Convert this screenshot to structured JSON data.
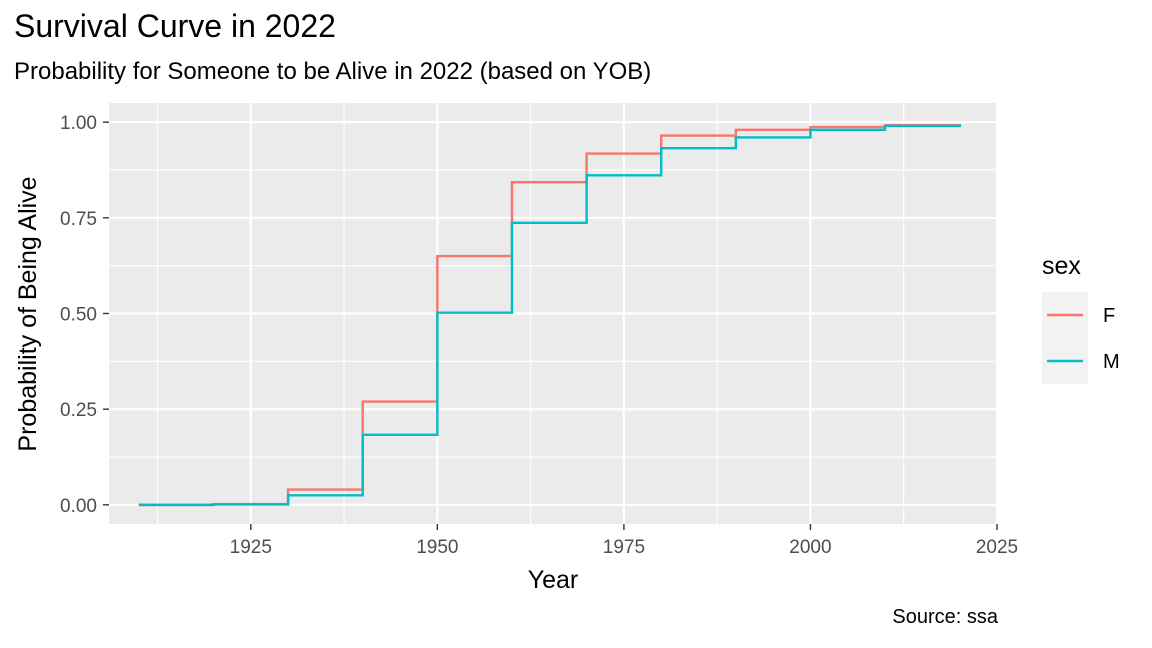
{
  "chart_data": {
    "type": "line",
    "step": true,
    "title": "Survival Curve in 2022",
    "subtitle": "Probability for Someone to be Alive in 2022 (based on YOB)",
    "caption": "Source: ssa",
    "xlabel": "Year",
    "ylabel": "Probability of Being Alive",
    "xlim": [
      1906,
      2025
    ],
    "ylim": [
      -0.05,
      1.05
    ],
    "x_ticks": [
      1925,
      1950,
      1975,
      2000,
      2025
    ],
    "x_tick_labels": [
      "1925",
      "1950",
      "1975",
      "2000",
      "2025"
    ],
    "y_ticks": [
      0,
      0.25,
      0.5,
      0.75,
      1
    ],
    "y_tick_labels": [
      "0.00",
      "0.25",
      "0.50",
      "0.75",
      "1.00"
    ],
    "grid": true,
    "legend": {
      "title": "sex",
      "position": "right"
    },
    "x": [
      1910,
      1920,
      1930,
      1940,
      1950,
      1960,
      1970,
      1980,
      1990,
      2000,
      2010,
      2020
    ],
    "series": [
      {
        "name": "F",
        "color": "#F8766D",
        "values": [
          0.0,
          0.002,
          0.04,
          0.27,
          0.65,
          0.843,
          0.918,
          0.965,
          0.98,
          0.987,
          0.992,
          0.995
        ]
      },
      {
        "name": "M",
        "color": "#00BFC4",
        "values": [
          0.0,
          0.001,
          0.025,
          0.183,
          0.502,
          0.737,
          0.861,
          0.932,
          0.96,
          0.98,
          0.99,
          0.995
        ]
      }
    ]
  }
}
